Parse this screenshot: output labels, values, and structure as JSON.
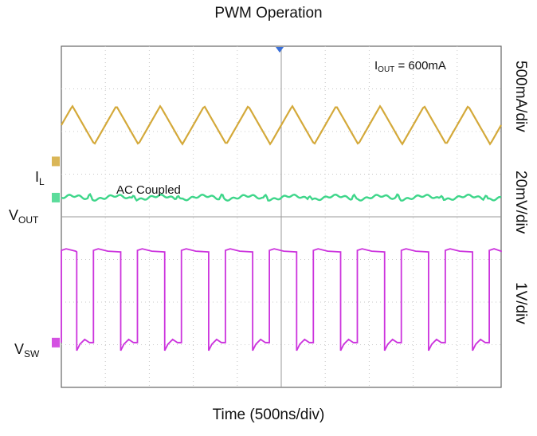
{
  "chart_data": {
    "type": "line",
    "title": "PWM Operation",
    "xlabel": "Time (500ns/div)",
    "x_divisions": 10,
    "y_divisions": 8,
    "grid": true,
    "annotations": {
      "iout_symbol": "I",
      "iout_sub": "OUT",
      "iout_value": "=  600mA",
      "ac_coupled": "AC Coupled"
    },
    "channels": [
      {
        "name_main": "I",
        "name_sub": "L",
        "scale": "500mA/div",
        "color": "#d4a93a",
        "waveform": "triangle",
        "periods_on_screen": 10,
        "peak_to_peak_div": 0.9,
        "center_div": 1.85
      },
      {
        "name_main": "V",
        "name_sub": "OUT",
        "scale": "20mV/div",
        "color": "#3ed68a",
        "waveform": "ripple",
        "periods_on_screen": 10,
        "peak_to_peak_div": 0.15,
        "center_div": 3.55
      },
      {
        "name_main": "V",
        "name_sub": "SW",
        "scale": "1V/div",
        "color": "#cc33dd",
        "waveform": "square",
        "periods_on_screen": 10,
        "duty_cycle": 0.62,
        "high_div": 4.75,
        "low_div": 6.95
      }
    ]
  }
}
